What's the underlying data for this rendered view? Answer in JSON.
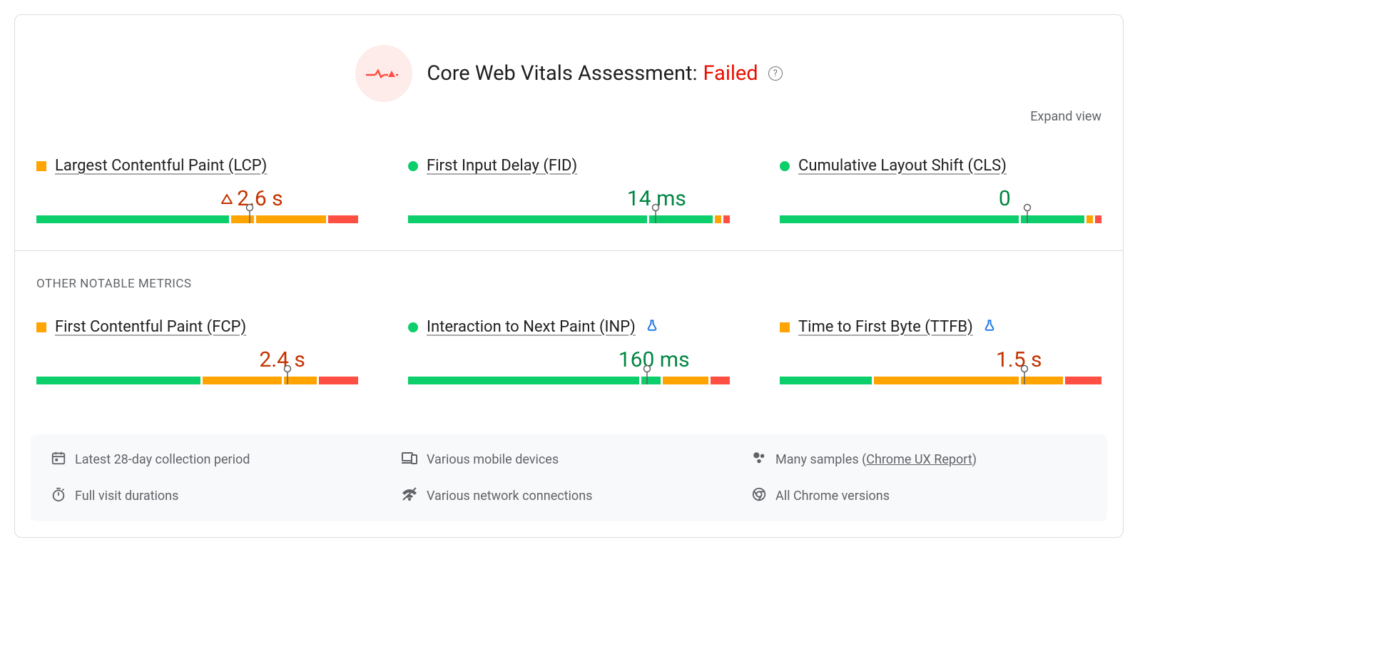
{
  "colors": {
    "green": "#0cce6b",
    "orange": "#ffa400",
    "red": "#ff4e42",
    "green_text": "#018642",
    "orange_text": "#c33300",
    "red_status": "#eb0f00"
  },
  "header": {
    "title_prefix": "Core Web Vitals Assessment:",
    "status_text": "Failed",
    "status_color": "#eb0f00",
    "expand_label": "Expand view"
  },
  "section_label": "OTHER NOTABLE METRICS",
  "metrics_row1": [
    {
      "name": "Largest Contentful Paint (LCP)",
      "status_shape": "square",
      "status_color": "#ffa400",
      "value": "2.6 s",
      "value_color": "#c33300",
      "show_warn_triangle": true,
      "lab": false,
      "segments": [
        {
          "color": "#0cce6b",
          "pct": 58
        },
        {
          "color": "#ffa400",
          "pct": 7
        },
        {
          "color": "#ffa400",
          "pct": 21
        },
        {
          "color": "#ff4e42",
          "pct": 9
        }
      ],
      "pointer_pct": 63,
      "value_align_pct": 63
    },
    {
      "name": "First Input Delay (FID)",
      "status_shape": "circle",
      "status_color": "#0cce6b",
      "value": "14 ms",
      "value_color": "#018642",
      "show_warn_triangle": false,
      "lab": false,
      "segments": [
        {
          "color": "#0cce6b",
          "pct": 74
        },
        {
          "color": "#0cce6b",
          "pct": 19.5
        },
        {
          "color": "#ffa400",
          "pct": 2
        },
        {
          "color": "#ff4e42",
          "pct": 2
        }
      ],
      "pointer_pct": 75,
      "value_align_pct": 75
    },
    {
      "name": "Cumulative Layout Shift (CLS)",
      "status_shape": "circle",
      "status_color": "#0cce6b",
      "value": "0",
      "value_color": "#018642",
      "show_warn_triangle": false,
      "lab": false,
      "segments": [
        {
          "color": "#0cce6b",
          "pct": 74
        },
        {
          "color": "#0cce6b",
          "pct": 19.5
        },
        {
          "color": "#ffa400",
          "pct": 2
        },
        {
          "color": "#ff4e42",
          "pct": 2
        }
      ],
      "pointer_pct": 75,
      "value_align_pct": 75
    }
  ],
  "metrics_row2": [
    {
      "name": "First Contentful Paint (FCP)",
      "status_shape": "square",
      "status_color": "#ffa400",
      "value": "2.4 s",
      "value_color": "#c33300",
      "show_warn_triangle": false,
      "lab": false,
      "segments": [
        {
          "color": "#0cce6b",
          "pct": 50
        },
        {
          "color": "#ffa400",
          "pct": 24
        },
        {
          "color": "#ffa400",
          "pct": 10
        },
        {
          "color": "#ff4e42",
          "pct": 12
        }
      ],
      "pointer_pct": 75,
      "value_align_pct": 75
    },
    {
      "name": "Interaction to Next Paint (INP)",
      "status_shape": "circle",
      "status_color": "#0cce6b",
      "value": "160 ms",
      "value_color": "#018642",
      "show_warn_triangle": false,
      "lab": true,
      "segments": [
        {
          "color": "#0cce6b",
          "pct": 71
        },
        {
          "color": "#0cce6b",
          "pct": 6
        },
        {
          "color": "#ffa400",
          "pct": 14
        },
        {
          "color": "#ff4e42",
          "pct": 6
        }
      ],
      "pointer_pct": 72,
      "value_align_pct": 72
    },
    {
      "name": "Time to First Byte (TTFB)",
      "status_shape": "square",
      "status_color": "#ffa400",
      "value": "1.5 s",
      "value_color": "#c33300",
      "show_warn_triangle": false,
      "lab": true,
      "segments": [
        {
          "color": "#0cce6b",
          "pct": 28
        },
        {
          "color": "#ffa400",
          "pct": 44
        },
        {
          "color": "#ffa400",
          "pct": 13
        },
        {
          "color": "#ff4e42",
          "pct": 11
        }
      ],
      "pointer_pct": 73,
      "value_align_pct": 73
    }
  ],
  "footer": [
    {
      "icon": "calendar",
      "text": "Latest 28-day collection period"
    },
    {
      "icon": "devices",
      "text": "Various mobile devices"
    },
    {
      "icon": "samples",
      "text_prefix": "Many samples (",
      "link": "Chrome UX Report",
      "text_suffix": ")"
    },
    {
      "icon": "timer",
      "text": "Full visit durations"
    },
    {
      "icon": "network",
      "text": "Various network connections"
    },
    {
      "icon": "chrome",
      "text": "All Chrome versions"
    }
  ]
}
